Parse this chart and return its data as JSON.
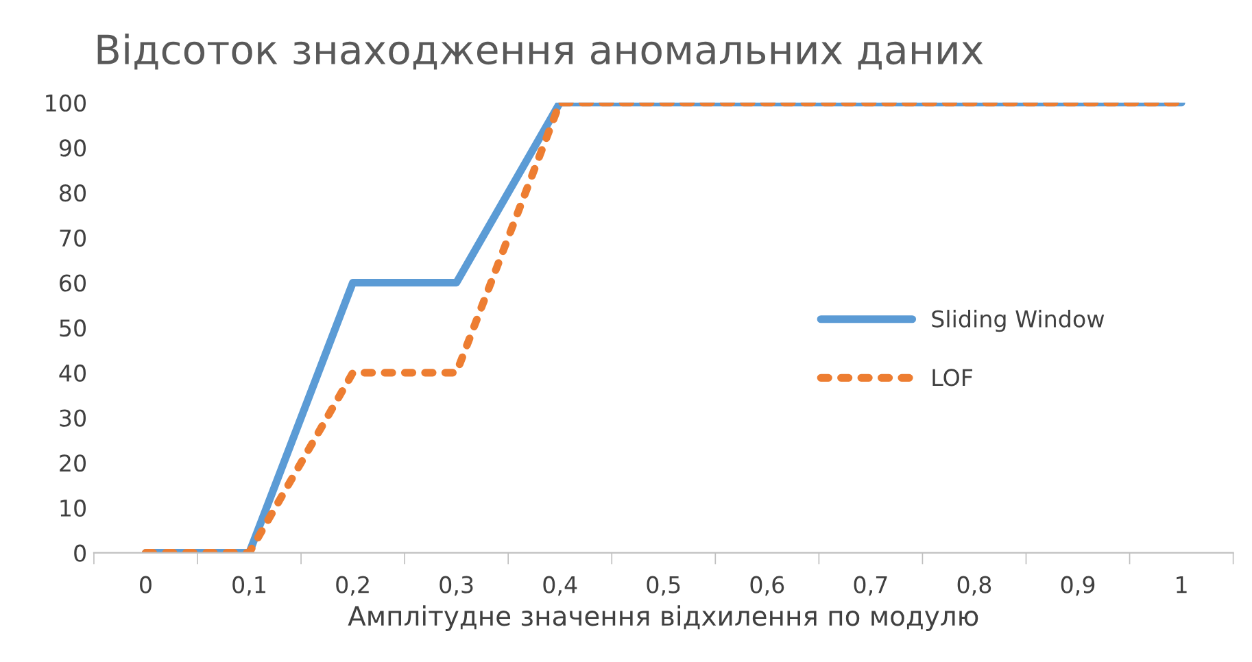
{
  "chart_data": {
    "type": "line",
    "title": "Відсоток знаходження аномальних даних",
    "xlabel": "Амплітудне значення відхилення по модулю",
    "categories": [
      "0",
      "0,1",
      "0,2",
      "0,3",
      "0,4",
      "0,5",
      "0,6",
      "0,7",
      "0,8",
      "0,9",
      "1"
    ],
    "series": [
      {
        "name": "Sliding Window",
        "color": "#5b9bd5",
        "line_style": "solid",
        "values": [
          0,
          0,
          60,
          60,
          100,
          100,
          100,
          100,
          100,
          100,
          100
        ]
      },
      {
        "name": "LOF",
        "color": "#ed7d31",
        "line_style": "dotted",
        "values": [
          0,
          0,
          40,
          40,
          100,
          100,
          100,
          100,
          100,
          100,
          100
        ]
      }
    ],
    "ylim": [
      0,
      100
    ],
    "yticks": [
      0,
      10,
      20,
      30,
      40,
      50,
      60,
      70,
      80,
      90,
      100
    ],
    "grid": false,
    "legend": "right",
    "marker": "none"
  }
}
